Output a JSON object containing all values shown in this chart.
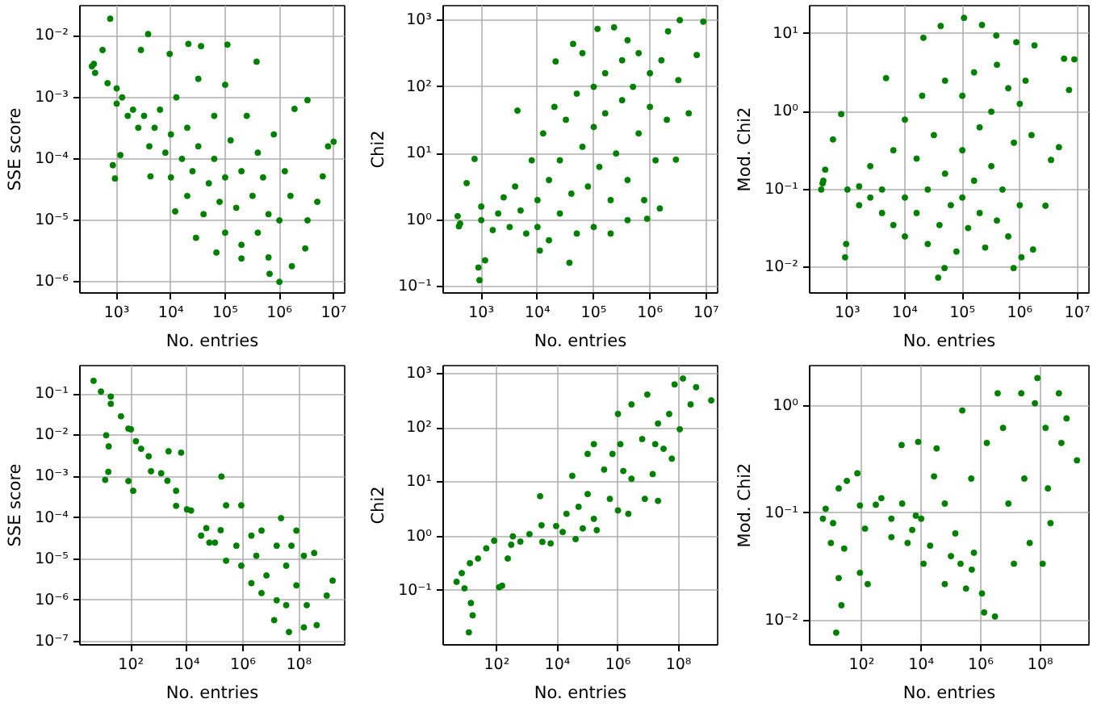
{
  "chart_data": [
    {
      "type": "scatter",
      "xlabel": "No. entries",
      "ylabel": "SSE score",
      "log": "xy",
      "grid": true,
      "marker": "circle",
      "color": "#008000",
      "xlim": [
        210.0,
        16000000.0
      ],
      "ylim": [
        6.6e-07,
        0.031
      ],
      "xticks": [
        {
          "value": 1000.0,
          "label": "10³"
        },
        {
          "value": 10000.0,
          "label": "10⁴"
        },
        {
          "value": 100000.0,
          "label": "10⁵"
        },
        {
          "value": 1000000.0,
          "label": "10⁶"
        },
        {
          "value": 10000000.0,
          "label": "10⁷"
        }
      ],
      "yticks": [
        {
          "value": 1e-06,
          "label": "10⁻⁶"
        },
        {
          "value": 1e-05,
          "label": "10⁻⁵"
        },
        {
          "value": 0.0001,
          "label": "10⁻⁴"
        },
        {
          "value": 0.001,
          "label": "10⁻³"
        },
        {
          "value": 0.01,
          "label": "10⁻²"
        }
      ],
      "x": [
        350,
        400,
        380,
        760,
        550,
        3800,
        2800,
        9500,
        21000,
        36000,
        110000,
        380000,
        680,
        1000,
        1000,
        1260,
        1600,
        2000,
        2500,
        3200,
        4000,
        5000,
        6300,
        7900,
        10000,
        10000,
        12600,
        16000,
        20000,
        20000,
        25000,
        32000,
        32000,
        40000,
        50000,
        63000,
        63000,
        79000,
        100000,
        100000,
        100000,
        126000,
        160000,
        200000,
        200000,
        250000,
        320000,
        400000,
        400000,
        500000,
        630000,
        630000,
        790000,
        1000000.0,
        1000000.0,
        1260000.0,
        1700000.0,
        1900000.0,
        3300000.0,
        10000000.0,
        7900000.0,
        6300000.0,
        5000000.0,
        3300000.0,
        3000000.0,
        1170,
        850,
        930,
        660000,
        12000,
        29000,
        69000,
        200000,
        1600000.0,
        4200
      ],
      "values": [
        0.0032,
        0.0025,
        0.0035,
        0.019,
        0.0059,
        0.0107,
        0.0059,
        0.0051,
        0.0074,
        0.0068,
        0.0072,
        0.0038,
        0.0017,
        0.0014,
        0.00079,
        0.001,
        0.0005,
        0.00063,
        0.00032,
        0.0005,
        0.00016,
        0.00032,
        0.00063,
        0.000126,
        0.00025,
        5e-05,
        0.001,
        0.0001,
        0.00032,
        2.5e-05,
        6.3e-05,
        0.00016,
        0.002,
        1.26e-05,
        4e-05,
        0.0005,
        0.0001,
        2e-05,
        5e-05,
        6.3e-06,
        0.0016,
        0.0002,
        1.6e-05,
        6.3e-05,
        4e-06,
        0.0005,
        2.5e-05,
        6.3e-06,
        0.000126,
        5e-05,
        2.5e-06,
        1.26e-05,
        0.00025,
        1e-06,
        1e-05,
        6.3e-05,
        1.8e-06,
        0.00065,
        0.0009,
        0.00019,
        0.00016,
        5.2e-05,
        2e-05,
        1e-05,
        3.5e-06,
        0.000115,
        7.9e-05,
        4.8e-05,
        1.35e-06,
        1.4e-05,
        5.2e-06,
        3e-06,
        2.4e-06,
        2.5e-05,
        5.2e-05
      ]
    },
    {
      "type": "scatter",
      "xlabel": "No. entries",
      "ylabel": "Chi2",
      "log": "xy",
      "grid": true,
      "marker": "circle",
      "color": "#008000",
      "xlim": [
        210.0,
        16000000.0
      ],
      "ylim": [
        0.081,
        1650.0
      ],
      "xticks": [
        {
          "value": 1000.0,
          "label": "10³"
        },
        {
          "value": 10000.0,
          "label": "10⁴"
        },
        {
          "value": 100000.0,
          "label": "10⁵"
        },
        {
          "value": 1000000.0,
          "label": "10⁶"
        },
        {
          "value": 10000000.0,
          "label": "10⁷"
        }
      ],
      "yticks": [
        {
          "value": 0.1,
          "label": "10⁻¹"
        },
        {
          "value": 1,
          "label": "10⁰"
        },
        {
          "value": 10,
          "label": "10¹"
        },
        {
          "value": 100,
          "label": "10²"
        },
        {
          "value": 1000,
          "label": "10³"
        }
      ],
      "x": [
        400,
        380,
        420,
        550,
        760,
        1170,
        890,
        930,
        1000,
        1000,
        1600,
        2000,
        2500,
        3200,
        4400,
        4000,
        5000,
        6300,
        7900,
        10000,
        10000,
        12600,
        16000,
        16000,
        21000,
        20000,
        25000,
        25000,
        32000,
        37000,
        40000,
        43000,
        50000,
        50000,
        63000,
        79000,
        100000,
        100000,
        100000,
        117000,
        126000,
        160000,
        160000,
        200000,
        230000,
        250000,
        320000,
        320000,
        400000,
        400000,
        500000,
        630000,
        630000,
        790000,
        890000,
        1000000.0,
        1000000.0,
        1260000.0,
        1500000.0,
        1600000.0,
        2000000.0,
        2100000.0,
        2900000.0,
        3400000.0,
        3200000.0,
        4900000.0,
        6800000.0,
        8900000.0,
        11000,
        200000,
        63000,
        400000
      ],
      "values": [
        0.81,
        1.15,
        0.89,
        3.6,
        8.3,
        0.25,
        0.195,
        0.126,
        1.0,
        1.6,
        0.71,
        1.26,
        2.2,
        0.79,
        44,
        3.2,
        1.4,
        0.63,
        7.9,
        2.0,
        0.79,
        20,
        4.0,
        0.5,
        240,
        50,
        7.9,
        1.26,
        32,
        0.23,
        2.5,
        440,
        79,
        0.63,
        12.6,
        3.2,
        100,
        25,
        0.79,
        740,
        6.3,
        160,
        40,
        2.0,
        780,
        10,
        250,
        63,
        1.0,
        4.0,
        100,
        20,
        320,
        2.0,
        1.05,
        50,
        160,
        7.9,
        1.5,
        250,
        32,
        680,
        8.1,
        1000,
        126,
        40,
        300,
        950,
        0.35,
        0.63,
        320,
        500
      ]
    },
    {
      "type": "scatter",
      "xlabel": "No. entries",
      "ylabel": "Mod. Chi2",
      "log": "xy",
      "grid": true,
      "marker": "circle",
      "color": "#008000",
      "xlim": [
        220.0,
        16000000.0
      ],
      "ylim": [
        0.0047,
        23
      ],
      "xticks": [
        {
          "value": 1000.0,
          "label": "10³"
        },
        {
          "value": 10000.0,
          "label": "10⁴"
        },
        {
          "value": 100000.0,
          "label": "10⁵"
        },
        {
          "value": 1000000.0,
          "label": "10⁶"
        },
        {
          "value": 10000000.0,
          "label": "10⁷"
        }
      ],
      "yticks": [
        {
          "value": 0.01,
          "label": "10⁻²"
        },
        {
          "value": 0.1,
          "label": "10⁻¹"
        },
        {
          "value": 1,
          "label": "10⁰"
        },
        {
          "value": 10,
          "label": "10¹"
        }
      ],
      "x": [
        370,
        410,
        560,
        780,
        950,
        910,
        4700,
        21000,
        42000,
        107000,
        220000,
        390000,
        870000,
        1800000.0,
        5900000.0,
        8900000.0,
        38000,
        49000,
        780000,
        1070000.0,
        1700000.0,
        2800000.0,
        3500000.0,
        4800000.0,
        7200000.0,
        1000,
        1600,
        1600,
        2500,
        2500,
        4000,
        4000,
        6300,
        6300,
        10000,
        10000,
        10000,
        16000,
        16000,
        20000,
        25000,
        25000,
        32000,
        40000,
        50000,
        50000,
        63000,
        79000,
        100000,
        100000,
        100000,
        126000,
        160000,
        160000,
        200000,
        200000,
        250000,
        320000,
        320000,
        400000,
        400000,
        500000,
        630000,
        630000,
        790000,
        1000000.0,
        1000000.0,
        1260000.0,
        1600000.0,
        350,
        380
      ],
      "values": [
        0.12,
        0.18,
        0.44,
        0.93,
        0.02,
        0.0135,
        2.7,
        8.9,
        12.6,
        16,
        13,
        9.5,
        7.8,
        7.1,
        4.8,
        4.7,
        0.0074,
        0.0098,
        0.0098,
        0.0135,
        0.017,
        0.062,
        0.24,
        0.35,
        1.9,
        0.1,
        0.11,
        0.063,
        0.079,
        0.2,
        0.05,
        0.1,
        0.035,
        0.32,
        0.079,
        0.025,
        0.79,
        0.05,
        0.25,
        1.6,
        0.02,
        0.1,
        0.5,
        0.035,
        2.5,
        0.16,
        0.063,
        0.016,
        0.32,
        1.6,
        0.079,
        0.032,
        3.2,
        0.13,
        0.05,
        0.63,
        0.018,
        1.0,
        0.2,
        0.04,
        4.0,
        0.1,
        2.0,
        0.025,
        0.4,
        0.063,
        1.26,
        2.5,
        0.5,
        0.1,
        0.13
      ]
    },
    {
      "type": "scatter",
      "xlabel": "No. entries",
      "ylabel": "SSE score",
      "log": "xy",
      "grid": true,
      "marker": "circle",
      "color": "#008000",
      "xlim": [
        1.5,
        4300000000.0
      ],
      "ylim": [
        8.3e-08,
        0.49
      ],
      "xticks": [
        {
          "value": 100.0,
          "label": "10²"
        },
        {
          "value": 10000.0,
          "label": "10⁴"
        },
        {
          "value": 1000000.0,
          "label": "10⁶"
        },
        {
          "value": 100000000.0,
          "label": "10⁸"
        }
      ],
      "yticks": [
        {
          "value": 1e-07,
          "label": "10⁻⁷"
        },
        {
          "value": 1e-06,
          "label": "10⁻⁶"
        },
        {
          "value": 1e-05,
          "label": "10⁻⁵"
        },
        {
          "value": 0.0001,
          "label": "10⁻⁴"
        },
        {
          "value": 0.001,
          "label": "10⁻³"
        },
        {
          "value": 0.01,
          "label": "10⁻²"
        },
        {
          "value": 0.1,
          "label": "10⁻¹"
        }
      ],
      "x": [
        4.6,
        8.5,
        19,
        44,
        81,
        150,
        430,
        1200,
        4100,
        14000,
        49000,
        520,
        4100,
        32000,
        250000.0,
        2000000.0,
        13000000.0,
        19,
        13,
        16,
        12,
        15.5,
        81,
        120,
        230,
        2200,
        6200,
        170000.0,
        250000.0,
        870000.0,
        23000000.0,
        81000000.0,
        350000000.0,
        1600000000.0,
        980000000.0,
        430000000.0,
        44000000.0,
        150000000.0,
        580000.0,
        3000000.0,
        4600000.0,
        16000000.0,
        35000000.0,
        6900000.0,
        81000000.0,
        190000000.0,
        16000000.0,
        2000000.0,
        870000.0,
        54000000.0,
        150000000.0,
        35000000.0,
        4600000.0,
        100,
        2000,
        10000.0,
        100000.0,
        160000.0,
        63000.0
      ],
      "values": [
        0.21,
        0.115,
        0.058,
        0.029,
        0.0145,
        0.0072,
        0.0031,
        0.0012,
        0.00045,
        0.00015,
        5.6e-05,
        0.00135,
        0.000195,
        3.7e-05,
        9.1e-06,
        2.6e-06,
        3.3e-07,
        0.087,
        0.01,
        0.0054,
        0.00083,
        0.0013,
        0.00078,
        0.00045,
        0.0047,
        0.0041,
        0.0038,
        0.001,
        0.0002,
        0.0002,
        9.8e-05,
        4.9e-05,
        1.4e-05,
        3e-06,
        1.3e-06,
        2.5e-07,
        1.7e-07,
        2.2e-07,
        2.1e-05,
        1.2e-05,
        4.9e-05,
        2.1e-05,
        6.9e-06,
        4e-06,
        2.3e-06,
        7.6e-07,
        1e-06,
        3.7e-05,
        6.9e-06,
        2.1e-05,
        1.2e-05,
        7.6e-07,
        1.5e-06,
        0.014,
        0.00079,
        0.00016,
        2.5e-05,
        5e-05,
        2.5e-05
      ]
    },
    {
      "type": "scatter",
      "xlabel": "No. entries",
      "ylabel": "Chi2",
      "log": "xy",
      "grid": true,
      "marker": "circle",
      "color": "#008000",
      "xlim": [
        1.7,
        1950000000.0
      ],
      "ylim": [
        0.01,
        1400.0
      ],
      "xticks": [
        {
          "value": 100.0,
          "label": "10²"
        },
        {
          "value": 10000.0,
          "label": "10⁴"
        },
        {
          "value": 1000000.0,
          "label": "10⁶"
        },
        {
          "value": 100000000.0,
          "label": "10⁸"
        }
      ],
      "yticks": [
        {
          "value": 0.1,
          "label": "10⁻¹"
        },
        {
          "value": 1,
          "label": "10⁰"
        },
        {
          "value": 10,
          "label": "10¹"
        },
        {
          "value": 100,
          "label": "10²"
        },
        {
          "value": 1000,
          "label": "10³"
        }
      ],
      "x": [
        4.7,
        7,
        8.6,
        12,
        16,
        14,
        13,
        24,
        45,
        82,
        120,
        150,
        230,
        340,
        1200,
        2700,
        9100,
        6000,
        31000,
        20000,
        69000,
        160000.0,
        100000.0,
        160000.0,
        100000.0,
        350000.0,
        540000.0,
        1000000.0,
        1200000.0,
        1500000.0,
        2200000.0,
        2800000.0,
        6300000.0,
        7700000.0,
        14000000.0,
        9300000.0,
        21000000.0,
        32000000.0,
        49000000.0,
        74000000.0,
        140000000.0,
        380000000.0,
        1200000000.0,
        250000000.0,
        110000000.0,
        60000000.0,
        17000000.0,
        2800000.0,
        660000.0,
        3200,
        40000,
        300,
        600,
        3000,
        15000,
        50000,
        200000.0,
        1000000.0,
        21000000.0
      ],
      "values": [
        0.145,
        0.21,
        0.11,
        0.017,
        0.035,
        0.059,
        0.32,
        0.39,
        0.6,
        0.83,
        0.115,
        0.123,
        0.39,
        1.0,
        1.1,
        5.5,
        1.55,
        0.74,
        13,
        2.6,
        1.4,
        2.1,
        6,
        50,
        33,
        17,
        4.9,
        180,
        50,
        16,
        2.6,
        270,
        62,
        4.9,
        14,
        410,
        120,
        41,
        180,
        630,
        810,
        560,
        320,
        270,
        94,
        27,
        50,
        11.5,
        33,
        0.79,
        0.89,
        0.7,
        0.8,
        1.6,
        1.2,
        3.5,
        1.3,
        3,
        4.5
      ]
    },
    {
      "type": "scatter",
      "xlabel": "No. entries",
      "ylabel": "Mod. Chi2",
      "log": "xy",
      "grid": true,
      "marker": "circle",
      "color": "#008000",
      "xlim": [
        1.8,
        4300000000.0
      ],
      "ylim": [
        0.006,
        2.35
      ],
      "xticks": [
        {
          "value": 100.0,
          "label": "10²"
        },
        {
          "value": 10000.0,
          "label": "10⁴"
        },
        {
          "value": 1000000.0,
          "label": "10⁶"
        },
        {
          "value": 100000000.0,
          "label": "10⁸"
        }
      ],
      "yticks": [
        {
          "value": 0.01,
          "label": "10⁻²"
        },
        {
          "value": 0.1,
          "label": "10⁻¹"
        },
        {
          "value": 1,
          "label": "10⁰"
        }
      ],
      "x": [
        5,
        6.2,
        9.3,
        11,
        14,
        21,
        17,
        26,
        17,
        32,
        72,
        88,
        160,
        130,
        88,
        460,
        1000,
        2300,
        2200,
        6600,
        10000,
        7900,
        33000,
        27000,
        3500,
        12000,
        62000,
        320000.0,
        240000.0,
        140000.0,
        62000,
        480000.0,
        1100000.0,
        1300000.0,
        3000000.0,
        1600000.0,
        3700000.0,
        5600000.0,
        8500000.0,
        13000000.0,
        23000000.0,
        29000000.0,
        44000000.0,
        80000000.0,
        66000000.0,
        150000000.0,
        180000000.0,
        220000000.0,
        420000000.0,
        510000000.0,
        1700000000.0,
        760000000.0,
        120000000.0,
        590000.0,
        210000.0,
        300,
        1000,
        5000,
        20000,
        100000.0,
        500000.0
      ],
      "values": [
        0.089,
        0.11,
        0.053,
        0.081,
        0.0078,
        0.014,
        0.025,
        0.047,
        0.17,
        0.2,
        0.235,
        0.028,
        0.022,
        0.072,
        0.118,
        0.138,
        0.089,
        0.123,
        0.43,
        0.095,
        0.089,
        0.46,
        0.4,
        0.22,
        0.053,
        0.034,
        0.022,
        0.02,
        0.9,
        0.065,
        0.123,
        0.21,
        0.018,
        0.012,
        0.011,
        0.45,
        1.3,
        0.62,
        0.123,
        0.034,
        1.3,
        0.21,
        0.053,
        1.8,
        1.05,
        0.62,
        0.17,
        0.081,
        1.3,
        0.45,
        0.31,
        0.76,
        0.034,
        0.043,
        0.034,
        0.12,
        0.06,
        0.07,
        0.05,
        0.04,
        0.03
      ]
    }
  ]
}
